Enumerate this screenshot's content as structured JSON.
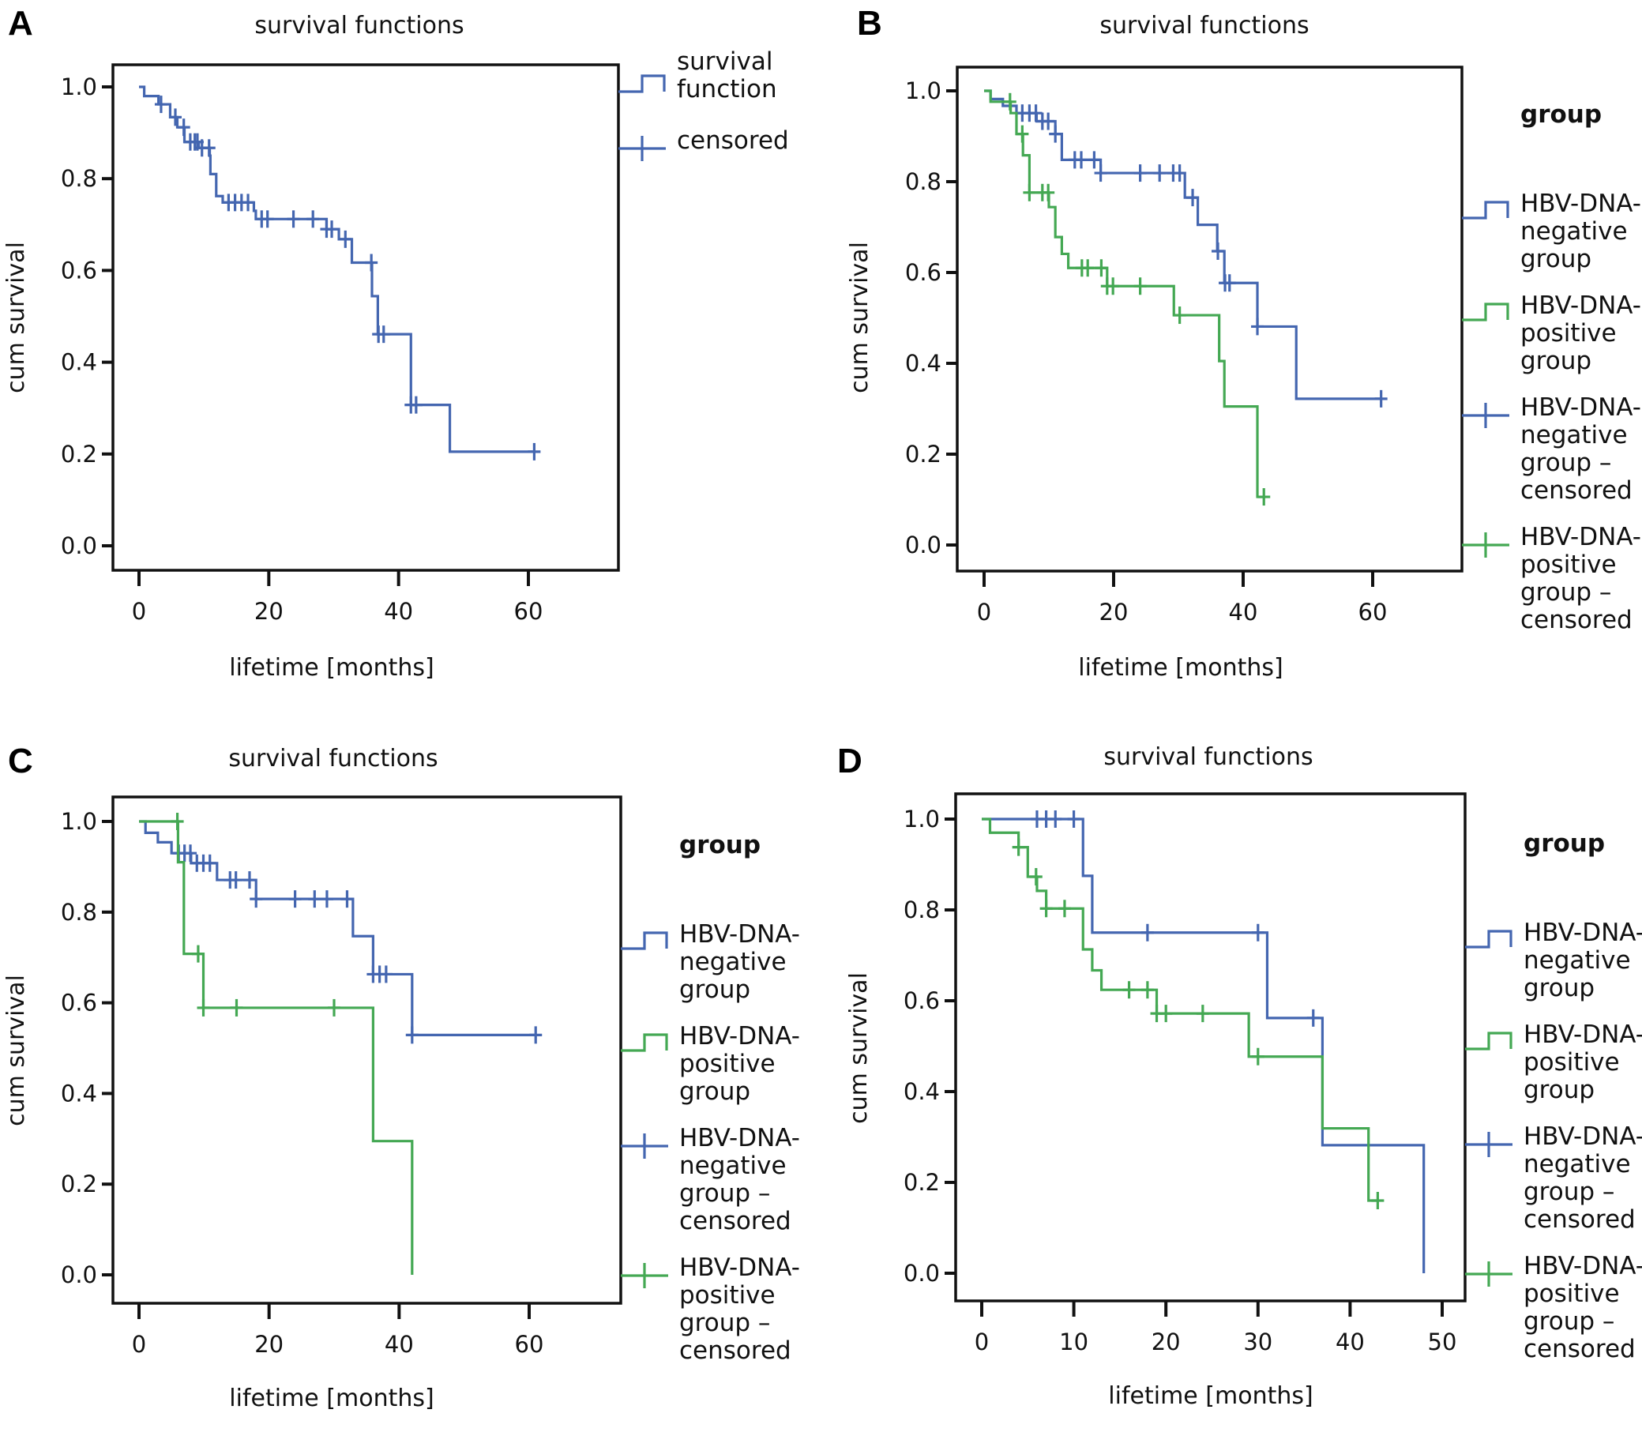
{
  "figure": {
    "panels": [
      "A",
      "B",
      "C",
      "D"
    ]
  },
  "colors": {
    "negative": "#4466b0",
    "positive": "#44a853",
    "single": "#4466b0"
  },
  "chart_data": [
    {
      "panel": "A",
      "type": "line",
      "subtype": "kaplan-meier",
      "title": "survival functions",
      "xlabel": "lifetime [months]",
      "ylabel": "cum survival",
      "xlim": [
        0,
        60
      ],
      "ylim": [
        0,
        1
      ],
      "xticks": [
        "0",
        "20",
        "40",
        "60"
      ],
      "xtick_values": [
        0,
        20,
        40,
        60
      ],
      "yticks": [
        "0.0",
        "0.2",
        "0.4",
        "0.6",
        "0.8",
        "1.0"
      ],
      "ytick_values": [
        0,
        0.2,
        0.4,
        0.6,
        0.8,
        1.0
      ],
      "legend": {
        "placement": "right",
        "heading": "",
        "entries": [
          {
            "label_lines": [
              "survival",
              "function"
            ],
            "kind": "step",
            "series": "single"
          },
          {
            "label_lines": [
              "censored"
            ],
            "kind": "censor",
            "series": "single"
          }
        ]
      },
      "series": [
        {
          "name": "survival function",
          "color_key": "single",
          "steps": [
            [
              0,
              1.0
            ],
            [
              0.8,
              0.98
            ],
            [
              3,
              0.962
            ],
            [
              4.8,
              0.934
            ],
            [
              5.9,
              0.912
            ],
            [
              7,
              0.88
            ],
            [
              9.2,
              0.867
            ],
            [
              10.9,
              0.85
            ],
            [
              11,
              0.81
            ],
            [
              11.9,
              0.762
            ],
            [
              12.9,
              0.748
            ],
            [
              17.7,
              0.73
            ],
            [
              18,
              0.712
            ],
            [
              28.9,
              0.69
            ],
            [
              30.8,
              0.668
            ],
            [
              32.8,
              0.617
            ],
            [
              35.9,
              0.544
            ],
            [
              36.8,
              0.461
            ],
            [
              41.9,
              0.307
            ],
            [
              47.9,
              0.205
            ]
          ],
          "end_x": 61,
          "censored": [
            3.4,
            5.6,
            6.9,
            7.9,
            8.6,
            9.0,
            9.7,
            10.8,
            13.8,
            14.8,
            15.8,
            16.8,
            18.9,
            19.8,
            23.8,
            26.8,
            28.9,
            29.7,
            31.8,
            35.8,
            36.9,
            37.7,
            41.9,
            42.7,
            60.9
          ]
        }
      ]
    },
    {
      "panel": "B",
      "type": "line",
      "subtype": "kaplan-meier",
      "title": "survival functions",
      "xlabel": "lifetime [months]",
      "ylabel": "cum survival",
      "xlim": [
        0,
        60
      ],
      "ylim": [
        0,
        1
      ],
      "xticks": [
        "0",
        "20",
        "40",
        "60"
      ],
      "xtick_values": [
        0,
        20,
        40,
        60
      ],
      "yticks": [
        "0.0",
        "0.2",
        "0.4",
        "0.6",
        "0.8",
        "1.0"
      ],
      "ytick_values": [
        0,
        0.2,
        0.4,
        0.6,
        0.8,
        1.0
      ],
      "legend": {
        "placement": "right",
        "heading": "group",
        "entries": [
          {
            "label_lines": [
              "HBV-DNA-",
              "negative",
              "group"
            ],
            "kind": "step",
            "series": "negative"
          },
          {
            "label_lines": [
              "HBV-DNA-",
              "positive",
              "group"
            ],
            "kind": "step",
            "series": "positive"
          },
          {
            "label_lines": [
              "HBV-DNA-",
              "negative",
              "group –",
              "censored"
            ],
            "kind": "censor",
            "series": "negative"
          },
          {
            "label_lines": [
              "HBV-DNA-",
              "positive",
              "group –",
              "censored"
            ],
            "kind": "censor",
            "series": "positive"
          }
        ]
      },
      "series": [
        {
          "name": "HBV-DNA-negative group",
          "color_key": "negative",
          "steps": [
            [
              0,
              1.0
            ],
            [
              1,
              0.982
            ],
            [
              2.9,
              0.967
            ],
            [
              5,
              0.951
            ],
            [
              8.1,
              0.933
            ],
            [
              11,
              0.905
            ],
            [
              12,
              0.848
            ],
            [
              18,
              0.819
            ],
            [
              31,
              0.765
            ],
            [
              33,
              0.705
            ],
            [
              36,
              0.647
            ],
            [
              37.1,
              0.577
            ],
            [
              42.2,
              0.481
            ],
            [
              48.2,
              0.322
            ]
          ],
          "end_x": 61.3,
          "censored": [
            5.9,
            7,
            8,
            9,
            9.9,
            11,
            14,
            15,
            17,
            18,
            24.1,
            27.1,
            29.2,
            30.2,
            32.2,
            36.1,
            37.2,
            37.9,
            42.2,
            61.3
          ]
        },
        {
          "name": "HBV-DNA-positive group",
          "color_key": "positive",
          "steps": [
            [
              0,
              1.0
            ],
            [
              1,
              0.976
            ],
            [
              4.1,
              0.951
            ],
            [
              5,
              0.905
            ],
            [
              6,
              0.858
            ],
            [
              7,
              0.776
            ],
            [
              10,
              0.744
            ],
            [
              11,
              0.678
            ],
            [
              12,
              0.641
            ],
            [
              13,
              0.61
            ],
            [
              19,
              0.57
            ],
            [
              29.3,
              0.506
            ],
            [
              36.3,
              0.405
            ],
            [
              37.1,
              0.305
            ],
            [
              42.2,
              0.106
            ]
          ],
          "end_x": 43.2,
          "censored": [
            4,
            5.9,
            7,
            9,
            9.9,
            15.1,
            16,
            18.1,
            19,
            19.9,
            24.1,
            30.2,
            43.2
          ]
        }
      ]
    },
    {
      "panel": "C",
      "type": "line",
      "subtype": "kaplan-meier",
      "title": "survival functions",
      "xlabel": "lifetime [months]",
      "ylabel": "cum survival",
      "xlim": [
        0,
        60
      ],
      "ylim": [
        0,
        1
      ],
      "xticks": [
        "0",
        "20",
        "40",
        "60"
      ],
      "xtick_values": [
        0,
        20,
        40,
        60
      ],
      "yticks": [
        "0.0",
        "0.2",
        "0.4",
        "0.6",
        "0.8",
        "1.0"
      ],
      "ytick_values": [
        0,
        0.2,
        0.4,
        0.6,
        0.8,
        1.0
      ],
      "legend": {
        "placement": "right",
        "heading": "group",
        "entries": [
          {
            "label_lines": [
              "HBV-DNA-",
              "negative",
              "group"
            ],
            "kind": "step",
            "series": "negative"
          },
          {
            "label_lines": [
              "HBV-DNA-",
              "positive",
              "group"
            ],
            "kind": "step",
            "series": "positive"
          },
          {
            "label_lines": [
              "HBV-DNA-",
              "negative",
              "group –",
              "censored"
            ],
            "kind": "censor",
            "series": "negative"
          },
          {
            "label_lines": [
              "HBV-DNA-",
              "positive",
              "group –",
              "censored"
            ],
            "kind": "censor",
            "series": "positive"
          }
        ]
      },
      "series": [
        {
          "name": "HBV-DNA-negative group",
          "color_key": "negative",
          "steps": [
            [
              0,
              1.0
            ],
            [
              1,
              0.975
            ],
            [
              2.9,
              0.954
            ],
            [
              5,
              0.93
            ],
            [
              8,
              0.908
            ],
            [
              12,
              0.871
            ],
            [
              18,
              0.829
            ],
            [
              32.9,
              0.747
            ],
            [
              36,
              0.663
            ],
            [
              42,
              0.529
            ]
          ],
          "end_x": 61,
          "censored": [
            6.1,
            7,
            7.9,
            8.9,
            9.9,
            10.9,
            14,
            14.9,
            17,
            18,
            24,
            27,
            28.9,
            32,
            36,
            37,
            38,
            42,
            61
          ]
        },
        {
          "name": "HBV-DNA-positive group",
          "color_key": "positive",
          "steps": [
            [
              0,
              1.0
            ],
            [
              6,
              0.91
            ],
            [
              6.9,
              0.708
            ],
            [
              9.9,
              0.589
            ],
            [
              36,
              0.295
            ],
            [
              42,
              0.0
            ]
          ],
          "end_x": 42,
          "censored": [
            5.9,
            9.1,
            9.9,
            15,
            30
          ]
        }
      ]
    },
    {
      "panel": "D",
      "type": "line",
      "subtype": "kaplan-meier",
      "title": "survival functions",
      "xlabel": "lifetime [months]",
      "ylabel": "cum survival",
      "xlim": [
        0,
        50
      ],
      "ylim": [
        0,
        1
      ],
      "xticks": [
        "0",
        "10",
        "20",
        "30",
        "40",
        "50"
      ],
      "xtick_values": [
        0,
        10,
        20,
        30,
        40,
        50
      ],
      "yticks": [
        "0.0",
        "0.2",
        "0.4",
        "0.6",
        "0.8",
        "1.0"
      ],
      "ytick_values": [
        0,
        0.2,
        0.4,
        0.6,
        0.8,
        1.0
      ],
      "legend": {
        "placement": "right",
        "heading": "group",
        "entries": [
          {
            "label_lines": [
              "HBV-DNA-",
              "negative",
              "group"
            ],
            "kind": "step",
            "series": "negative"
          },
          {
            "label_lines": [
              "HBV-DNA-",
              "positive",
              "group"
            ],
            "kind": "step",
            "series": "positive"
          },
          {
            "label_lines": [
              "HBV-DNA-",
              "negative",
              "group –",
              "censored"
            ],
            "kind": "censor",
            "series": "negative"
          },
          {
            "label_lines": [
              "HBV-DNA-",
              "positive",
              "group –",
              "censored"
            ],
            "kind": "censor",
            "series": "positive"
          }
        ]
      },
      "series": [
        {
          "name": "HBV-DNA-negative group",
          "color_key": "negative",
          "steps": [
            [
              0,
              1.0
            ],
            [
              11,
              0.875
            ],
            [
              12,
              0.75
            ],
            [
              31,
              0.562
            ],
            [
              37,
              0.282
            ],
            [
              48,
              0.0
            ]
          ],
          "end_x": 48,
          "censored": [
            6,
            7,
            8,
            10,
            18,
            30,
            36
          ]
        },
        {
          "name": "HBV-DNA-positive group",
          "color_key": "positive",
          "steps": [
            [
              0,
              1.0
            ],
            [
              0.9,
              0.97
            ],
            [
              4,
              0.938
            ],
            [
              5,
              0.873
            ],
            [
              6,
              0.842
            ],
            [
              7,
              0.803
            ],
            [
              11,
              0.713
            ],
            [
              12,
              0.667
            ],
            [
              13,
              0.624
            ],
            [
              19,
              0.572
            ],
            [
              29,
              0.477
            ],
            [
              37,
              0.319
            ],
            [
              42,
              0.16
            ]
          ],
          "end_x": 43,
          "censored": [
            4,
            5.9,
            7,
            9,
            16,
            18,
            19,
            20,
            24,
            30,
            43
          ]
        }
      ]
    }
  ]
}
